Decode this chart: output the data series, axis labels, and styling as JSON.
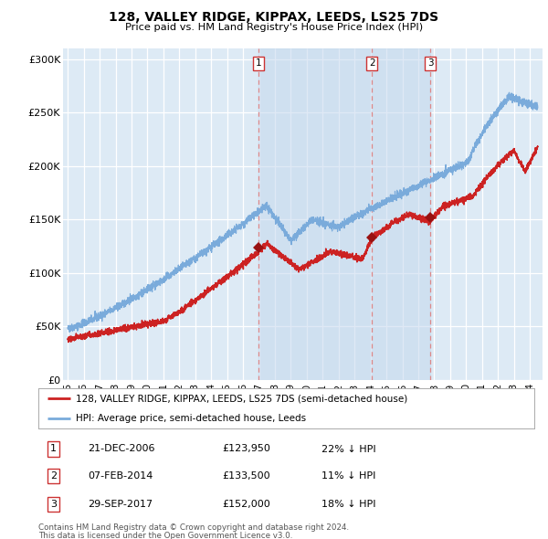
{
  "title": "128, VALLEY RIDGE, KIPPAX, LEEDS, LS25 7DS",
  "subtitle": "Price paid vs. HM Land Registry's House Price Index (HPI)",
  "legend_line1": "128, VALLEY RIDGE, KIPPAX, LEEDS, LS25 7DS (semi-detached house)",
  "legend_line2": "HPI: Average price, semi-detached house, Leeds",
  "footnote1": "Contains HM Land Registry data © Crown copyright and database right 2024.",
  "footnote2": "This data is licensed under the Open Government Licence v3.0.",
  "transactions": [
    {
      "num": 1,
      "date": "21-DEC-2006",
      "price": "£123,950",
      "pct": "22%",
      "dir": "↓",
      "x_year": 2006.97
    },
    {
      "num": 2,
      "date": "07-FEB-2014",
      "price": "£133,500",
      "pct": "11%",
      "dir": "↓",
      "x_year": 2014.1
    },
    {
      "num": 3,
      "date": "29-SEP-2017",
      "price": "£152,000",
      "pct": "18%",
      "dir": "↓",
      "x_year": 2017.75
    }
  ],
  "red_line_color": "#cc2222",
  "blue_line_color": "#7aabdb",
  "vline_color": "#dd8888",
  "background_fill": "#ddeaf5",
  "marker_color": "#991111",
  "ylim": [
    0,
    310000
  ],
  "xlim_start": 1994.7,
  "xlim_end": 2024.8,
  "yticks": [
    0,
    50000,
    100000,
    150000,
    200000,
    250000,
    300000
  ],
  "ytick_labels": [
    "£0",
    "£50K",
    "£100K",
    "£150K",
    "£200K",
    "£250K",
    "£300K"
  ]
}
